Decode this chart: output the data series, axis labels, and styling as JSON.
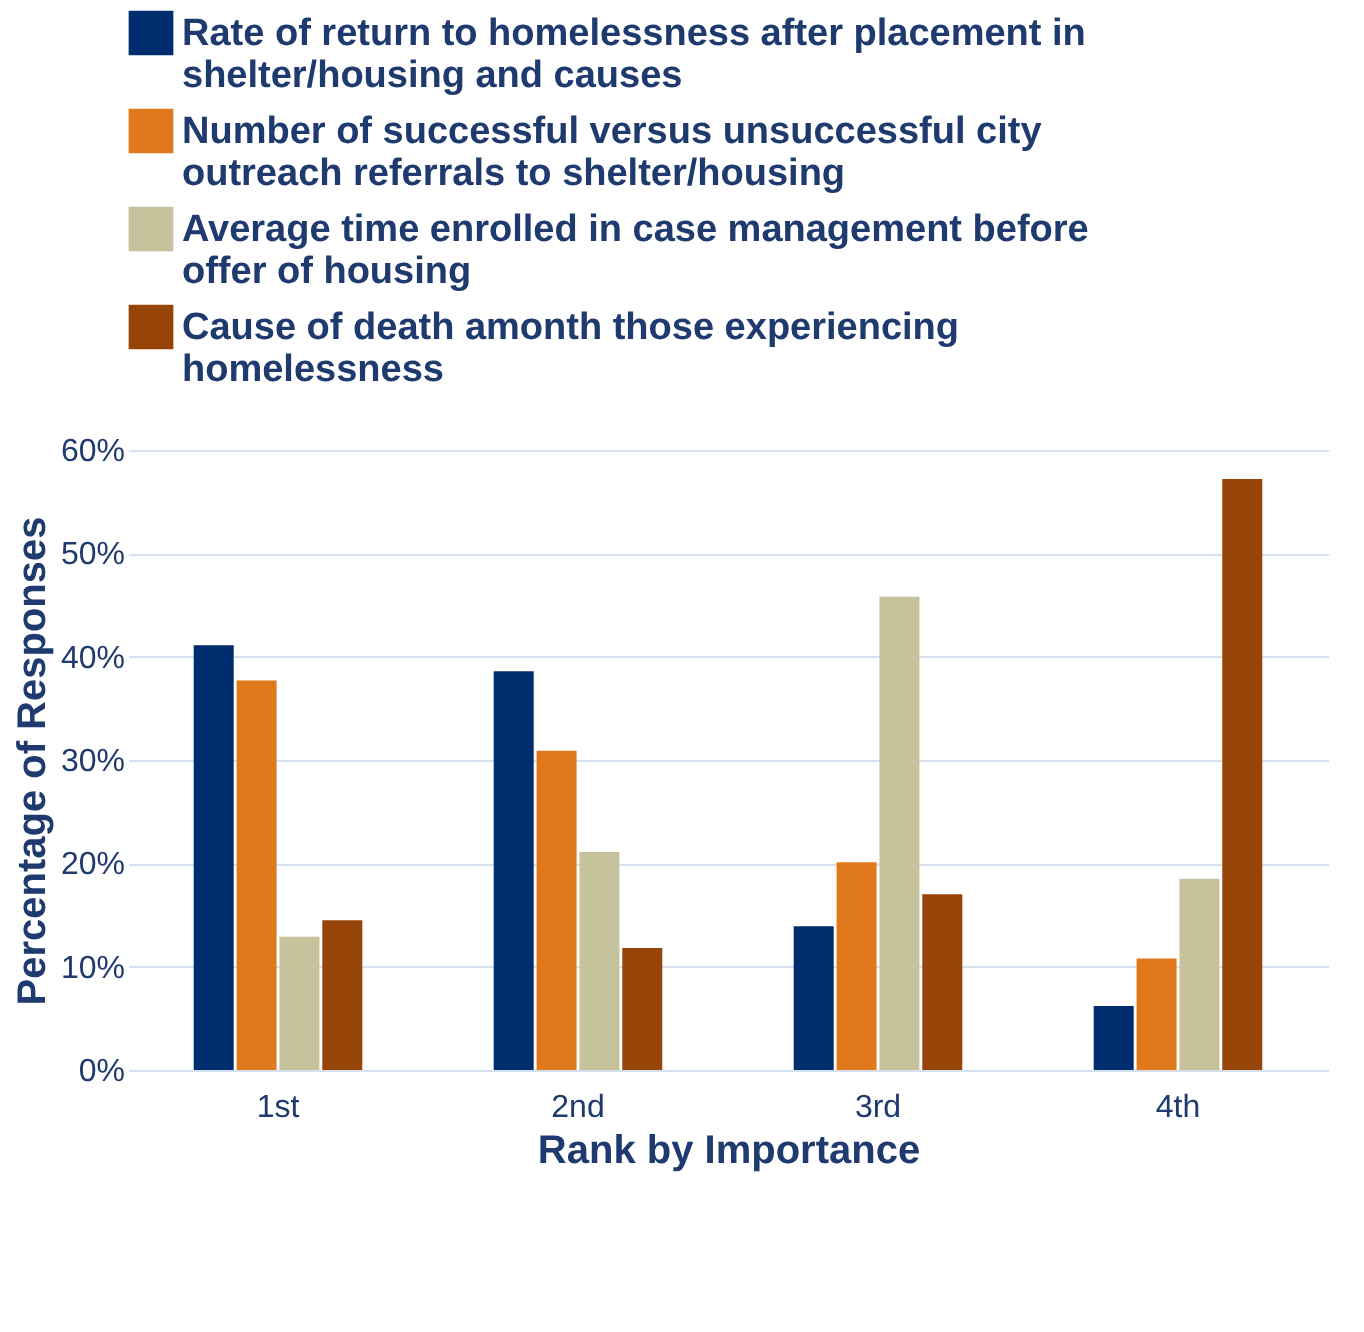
{
  "chart_data": {
    "type": "bar",
    "xlabel": "Rank by Importance",
    "ylabel": "Percentage of Responses",
    "categories": [
      "1st",
      "2nd",
      "3rd",
      "4th"
    ],
    "series": [
      {
        "name": "Rate of return to homelessness after placement in shelter/housing and causes",
        "color": "#002d6e",
        "values": [
          41.1,
          38.6,
          13.9,
          6.2
        ]
      },
      {
        "name": "Number of successful versus unsuccessful city outreach referrals to shelter/housing",
        "color": "#e0781c",
        "values": [
          37.7,
          30.9,
          20.1,
          10.8
        ]
      },
      {
        "name": "Average time enrolled in case management before offer of housing",
        "color": "#c6c29c",
        "values": [
          12.9,
          21.1,
          45.8,
          18.5
        ]
      },
      {
        "name": "Cause of death amonth those experiencing homelessness",
        "color": "#974408",
        "values": [
          14.5,
          11.8,
          17.0,
          57.2
        ]
      }
    ],
    "ylim": [
      0,
      60
    ],
    "yticks": [
      {
        "value": 0,
        "label": "0%"
      },
      {
        "value": 10,
        "label": "10%"
      },
      {
        "value": 20,
        "label": "20%"
      },
      {
        "value": 30,
        "label": "30%"
      },
      {
        "value": 40,
        "label": "40%"
      },
      {
        "value": 50,
        "label": "50%"
      },
      {
        "value": 60,
        "label": "60%"
      }
    ],
    "grid": "y",
    "legend": "top left"
  }
}
